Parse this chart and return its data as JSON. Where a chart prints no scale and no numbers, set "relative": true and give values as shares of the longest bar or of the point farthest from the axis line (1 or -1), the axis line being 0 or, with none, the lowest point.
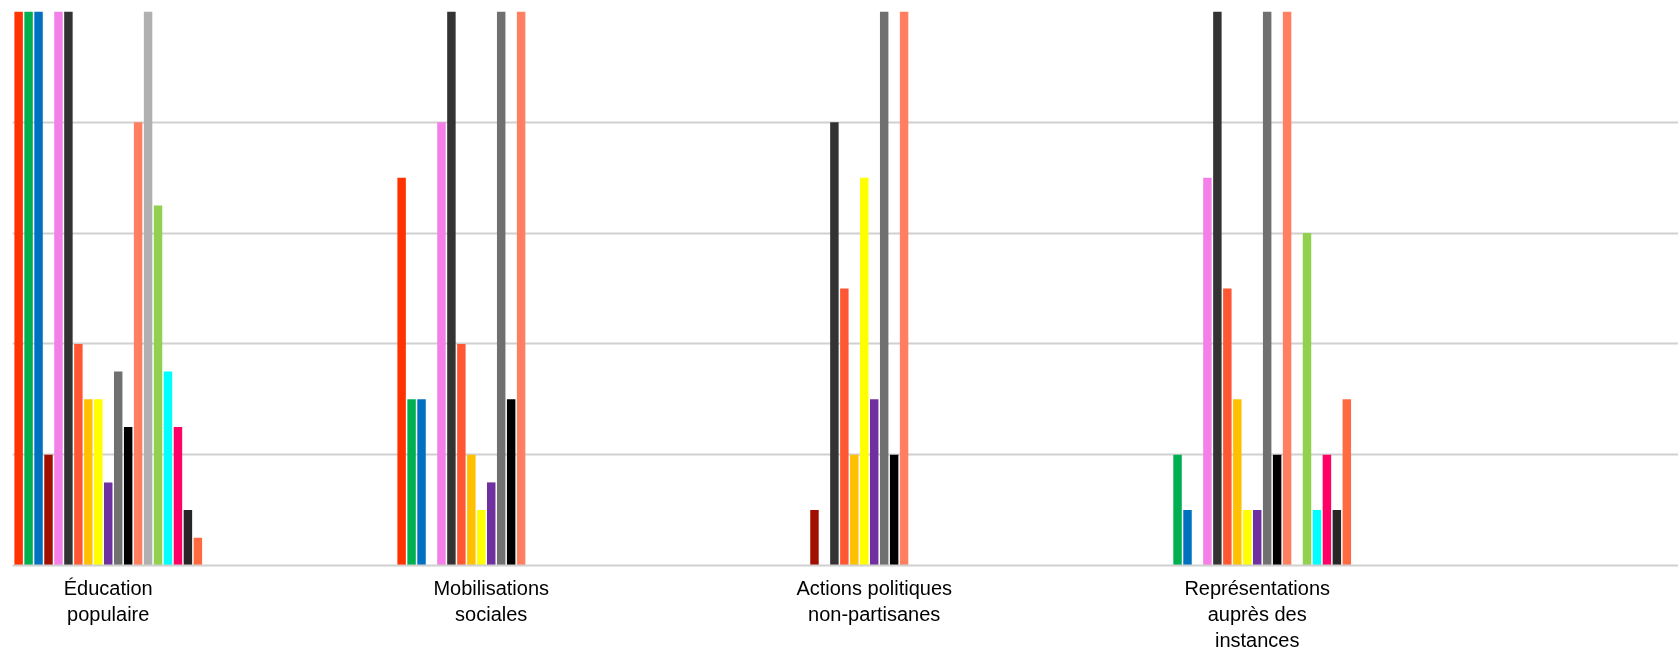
{
  "chart_data": {
    "type": "bar",
    "relative": true,
    "grid": "y",
    "categories": [
      "Éducation populaire",
      "Mobilisations sociales",
      "Actions politiques non-partisanes",
      "Représentations auprès des instances"
    ],
    "series": [
      {
        "color": "#ff3300",
        "values": [
          1,
          0.7,
          0,
          0
        ]
      },
      {
        "color": "#00b050",
        "values": [
          1,
          0.3,
          0,
          0.2
        ]
      },
      {
        "color": "#0070c0",
        "values": [
          1,
          0.3,
          0,
          0.1
        ]
      },
      {
        "color": "#a00f00",
        "values": [
          0.2,
          0,
          0.1,
          0
        ]
      },
      {
        "color": "#f47fe8",
        "values": [
          1,
          0.8,
          0,
          0.7
        ]
      },
      {
        "color": "#333333",
        "values": [
          1,
          1,
          0.8,
          1
        ]
      },
      {
        "color": "#ff5733",
        "values": [
          0.4,
          0.4,
          0.5,
          0.5
        ]
      },
      {
        "color": "#ffc000",
        "values": [
          0.3,
          0.2,
          0.2,
          0.3
        ]
      },
      {
        "color": "#ffff00",
        "values": [
          0.3,
          0.1,
          0.7,
          0.1
        ]
      },
      {
        "color": "#7030a0",
        "values": [
          0.15,
          0.15,
          0.3,
          0.1
        ]
      },
      {
        "color": "#707070",
        "values": [
          0.35,
          1,
          1,
          1
        ]
      },
      {
        "color": "#000000",
        "values": [
          0.25,
          0.3,
          0.2,
          0.2
        ]
      },
      {
        "color": "#ff7f60",
        "values": [
          0.8,
          1,
          1,
          1
        ]
      },
      {
        "color": "#b0b0b0",
        "values": [
          1,
          0,
          0,
          0
        ]
      },
      {
        "color": "#92d050",
        "values": [
          0.65,
          0,
          0,
          0.6
        ]
      },
      {
        "color": "#00ffff",
        "values": [
          0.35,
          0,
          0,
          0.1
        ]
      },
      {
        "color": "#ff0066",
        "values": [
          0.25,
          0,
          0,
          0.2
        ]
      },
      {
        "color": "#262626",
        "values": [
          0.1,
          0,
          0,
          0.1
        ]
      },
      {
        "color": "#ff6a40",
        "values": [
          0.05,
          0,
          0,
          0.3
        ]
      }
    ]
  }
}
